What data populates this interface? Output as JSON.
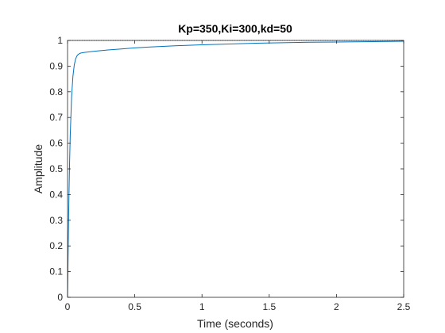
{
  "chart_data": {
    "type": "line",
    "title": "Kp=350,Ki=300,kd=50",
    "xlabel": "Time (seconds)",
    "ylabel": "Amplitude",
    "xlim": [
      0,
      2.5
    ],
    "ylim": [
      0,
      1
    ],
    "x_ticks": [
      0,
      0.5,
      1,
      1.5,
      2,
      2.5
    ],
    "x_tick_labels": [
      "0",
      "0.5",
      "1",
      "1.5",
      "2",
      "2.5"
    ],
    "y_ticks": [
      0,
      0.1,
      0.2,
      0.3,
      0.4,
      0.5,
      0.6,
      0.7,
      0.8,
      0.9,
      1
    ],
    "y_tick_labels": [
      "0",
      "0.1",
      "0.2",
      "0.3",
      "0.4",
      "0.5",
      "0.6",
      "0.7",
      "0.8",
      "0.9",
      "1"
    ],
    "grid": false,
    "box": true,
    "reference_line": {
      "y": 1,
      "style": "dotted",
      "color": "#000000"
    },
    "series": [
      {
        "color": "#0072BD",
        "x": [
          0,
          0.005,
          0.01,
          0.015,
          0.02,
          0.03,
          0.04,
          0.05,
          0.06,
          0.07,
          0.08,
          0.09,
          0.1,
          0.12,
          0.15,
          0.2,
          0.3,
          0.4,
          0.5,
          0.6,
          0.8,
          1.0,
          1.2,
          1.4,
          1.6,
          1.8,
          2.0,
          2.2,
          2.4,
          2.5
        ],
        "y": [
          0,
          0.2,
          0.38,
          0.52,
          0.63,
          0.78,
          0.86,
          0.905,
          0.928,
          0.94,
          0.946,
          0.949,
          0.951,
          0.953,
          0.955,
          0.958,
          0.963,
          0.967,
          0.971,
          0.974,
          0.979,
          0.983,
          0.986,
          0.989,
          0.991,
          0.993,
          0.994,
          0.995,
          0.996,
          0.997
        ]
      }
    ]
  }
}
